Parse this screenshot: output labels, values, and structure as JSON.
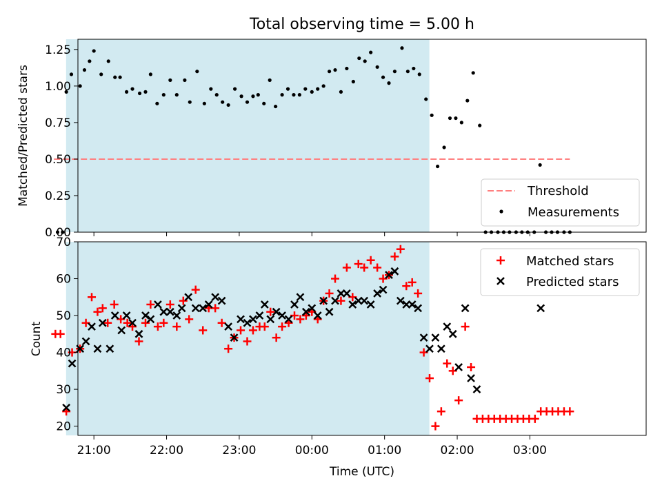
{
  "chart_data": [
    {
      "type": "scatter",
      "title": "Total observing time = 5.00 h",
      "xlabel": "",
      "ylabel": "Matched/Predicted stars",
      "xlim": [
        -3.22,
        4.6
      ],
      "ylim": [
        0.0,
        1.32
      ],
      "yticks": [
        "0.00",
        "0.25",
        "0.50",
        "0.75",
        "1.00",
        "1.25"
      ],
      "shaded_interval": {
        "start": -3.383,
        "end": 1.617,
        "color": "#add8e6"
      },
      "threshold": {
        "name": "Threshold",
        "y": 0.5,
        "x_start": -3.55,
        "x_end": 3.55,
        "color": "#ff7f7f",
        "style": "dashed"
      },
      "series": [
        {
          "name": "Measurements",
          "color": "#000000",
          "marker": "dot",
          "points": [
            [
              -3.5,
              0.0
            ],
            [
              -3.43,
              0.0
            ],
            [
              -3.38,
              0.96
            ],
            [
              -3.31,
              1.08
            ],
            [
              -3.19,
              1.0
            ],
            [
              -3.13,
              1.11
            ],
            [
              -3.06,
              1.17
            ],
            [
              -3.0,
              1.24
            ],
            [
              -2.9,
              1.08
            ],
            [
              -2.8,
              1.17
            ],
            [
              -2.71,
              1.06
            ],
            [
              -2.64,
              1.06
            ],
            [
              -2.55,
              0.96
            ],
            [
              -2.47,
              0.98
            ],
            [
              -2.37,
              0.95
            ],
            [
              -2.29,
              0.96
            ],
            [
              -2.22,
              1.08
            ],
            [
              -2.13,
              0.88
            ],
            [
              -2.04,
              0.94
            ],
            [
              -1.95,
              1.04
            ],
            [
              -1.86,
              0.94
            ],
            [
              -1.75,
              1.04
            ],
            [
              -1.68,
              0.89
            ],
            [
              -1.58,
              1.1
            ],
            [
              -1.48,
              0.88
            ],
            [
              -1.39,
              0.98
            ],
            [
              -1.31,
              0.94
            ],
            [
              -1.23,
              0.89
            ],
            [
              -1.15,
              0.87
            ],
            [
              -1.06,
              0.98
            ],
            [
              -0.97,
              0.93
            ],
            [
              -0.89,
              0.89
            ],
            [
              -0.81,
              0.93
            ],
            [
              -0.74,
              0.94
            ],
            [
              -0.66,
              0.88
            ],
            [
              -0.58,
              1.04
            ],
            [
              -0.5,
              0.86
            ],
            [
              -0.41,
              0.94
            ],
            [
              -0.33,
              0.98
            ],
            [
              -0.25,
              0.94
            ],
            [
              -0.17,
              0.94
            ],
            [
              -0.09,
              0.98
            ],
            [
              0.0,
              0.96
            ],
            [
              0.08,
              0.98
            ],
            [
              0.16,
              1.0
            ],
            [
              0.24,
              1.1
            ],
            [
              0.32,
              1.11
            ],
            [
              0.4,
              0.96
            ],
            [
              0.48,
              1.12
            ],
            [
              0.57,
              1.03
            ],
            [
              0.65,
              1.19
            ],
            [
              0.73,
              1.17
            ],
            [
              0.81,
              1.23
            ],
            [
              0.9,
              1.13
            ],
            [
              0.98,
              1.06
            ],
            [
              1.06,
              1.02
            ],
            [
              1.14,
              1.1
            ],
            [
              1.24,
              1.26
            ],
            [
              1.32,
              1.1
            ],
            [
              1.4,
              1.12
            ],
            [
              1.48,
              1.08
            ],
            [
              1.57,
              0.91
            ],
            [
              1.65,
              0.8
            ],
            [
              1.73,
              0.45
            ],
            [
              1.82,
              0.58
            ],
            [
              1.9,
              0.78
            ],
            [
              1.98,
              0.78
            ],
            [
              2.06,
              0.75
            ],
            [
              2.14,
              0.9
            ],
            [
              2.22,
              1.09
            ],
            [
              2.31,
              0.73
            ],
            [
              2.39,
              0.0
            ],
            [
              2.47,
              0.0
            ],
            [
              2.56,
              0.0
            ],
            [
              2.64,
              0.0
            ],
            [
              2.72,
              0.0
            ],
            [
              2.81,
              0.0
            ],
            [
              2.89,
              0.0
            ],
            [
              2.97,
              0.0
            ],
            [
              3.06,
              0.0
            ],
            [
              3.14,
              0.46
            ],
            [
              3.22,
              0.0
            ],
            [
              3.3,
              0.0
            ],
            [
              3.38,
              0.0
            ],
            [
              3.47,
              0.0
            ],
            [
              3.55,
              0.0
            ]
          ]
        }
      ],
      "legend": {
        "placement": "lower-right",
        "entries": [
          "Threshold",
          "Measurements"
        ]
      }
    },
    {
      "type": "scatter",
      "title": "",
      "xlabel": "Time (UTC)",
      "ylabel": "Count",
      "xlim": [
        -3.22,
        4.6
      ],
      "ylim": [
        17.5,
        70.0
      ],
      "yticks": [
        "20",
        "30",
        "40",
        "50",
        "60",
        "70"
      ],
      "xticks": [
        {
          "value": -3.0,
          "label": "21:00"
        },
        {
          "value": -2.0,
          "label": "22:00"
        },
        {
          "value": -1.0,
          "label": "23:00"
        },
        {
          "value": 0.0,
          "label": "00:00"
        },
        {
          "value": 1.0,
          "label": "01:00"
        },
        {
          "value": 2.0,
          "label": "02:00"
        },
        {
          "value": 3.0,
          "label": "03:00"
        }
      ],
      "shaded_interval": {
        "start": -3.383,
        "end": 1.617,
        "color": "#add8e6"
      },
      "series": [
        {
          "name": "Matched stars",
          "color": "#ff0000",
          "marker": "plus",
          "points": [
            [
              -3.53,
              45
            ],
            [
              -3.46,
              45
            ],
            [
              -3.38,
              24
            ],
            [
              -3.3,
              40
            ],
            [
              -3.19,
              41
            ],
            [
              -3.11,
              48
            ],
            [
              -3.03,
              55
            ],
            [
              -2.95,
              51
            ],
            [
              -2.88,
              52
            ],
            [
              -2.81,
              48
            ],
            [
              -2.72,
              53
            ],
            [
              -2.63,
              49
            ],
            [
              -2.54,
              48
            ],
            [
              -2.47,
              47
            ],
            [
              -2.38,
              43
            ],
            [
              -2.29,
              48
            ],
            [
              -2.22,
              53
            ],
            [
              -2.12,
              47
            ],
            [
              -2.04,
              48
            ],
            [
              -1.95,
              53
            ],
            [
              -1.86,
              47
            ],
            [
              -1.77,
              54
            ],
            [
              -1.69,
              49
            ],
            [
              -1.6,
              57
            ],
            [
              -1.5,
              46
            ],
            [
              -1.42,
              52
            ],
            [
              -1.33,
              52
            ],
            [
              -1.24,
              48
            ],
            [
              -1.15,
              41
            ],
            [
              -1.07,
              44
            ],
            [
              -0.98,
              46
            ],
            [
              -0.89,
              43
            ],
            [
              -0.81,
              46
            ],
            [
              -0.72,
              47
            ],
            [
              -0.65,
              47
            ],
            [
              -0.57,
              51
            ],
            [
              -0.49,
              44
            ],
            [
              -0.41,
              47
            ],
            [
              -0.32,
              48
            ],
            [
              -0.24,
              50
            ],
            [
              -0.16,
              49
            ],
            [
              -0.08,
              50
            ],
            [
              0.0,
              51
            ],
            [
              0.08,
              49
            ],
            [
              0.16,
              54
            ],
            [
              0.24,
              56
            ],
            [
              0.32,
              60
            ],
            [
              0.4,
              54
            ],
            [
              0.48,
              63
            ],
            [
              0.56,
              55
            ],
            [
              0.64,
              64
            ],
            [
              0.72,
              63
            ],
            [
              0.81,
              65
            ],
            [
              0.9,
              63
            ],
            [
              0.98,
              60
            ],
            [
              1.06,
              61
            ],
            [
              1.14,
              66
            ],
            [
              1.22,
              68
            ],
            [
              1.3,
              58
            ],
            [
              1.38,
              59
            ],
            [
              1.46,
              56
            ],
            [
              1.54,
              40
            ],
            [
              1.62,
              33
            ],
            [
              1.7,
              20
            ],
            [
              1.78,
              24
            ],
            [
              1.86,
              37
            ],
            [
              1.94,
              35
            ],
            [
              2.02,
              27
            ],
            [
              2.11,
              47
            ],
            [
              2.19,
              36
            ],
            [
              2.27,
              22
            ],
            [
              2.35,
              22
            ],
            [
              2.43,
              22
            ],
            [
              2.51,
              22
            ],
            [
              2.59,
              22
            ],
            [
              2.67,
              22
            ],
            [
              2.75,
              22
            ],
            [
              2.83,
              22
            ],
            [
              2.91,
              22
            ],
            [
              2.99,
              22
            ],
            [
              3.07,
              22
            ],
            [
              3.15,
              24
            ],
            [
              3.23,
              24
            ],
            [
              3.31,
              24
            ],
            [
              3.39,
              24
            ],
            [
              3.47,
              24
            ],
            [
              3.55,
              24
            ]
          ]
        },
        {
          "name": "Predicted stars",
          "color": "#000000",
          "marker": "x",
          "points": [
            [
              -3.38,
              25
            ],
            [
              -3.3,
              37
            ],
            [
              -3.19,
              41
            ],
            [
              -3.11,
              43
            ],
            [
              -3.03,
              47
            ],
            [
              -2.95,
              41
            ],
            [
              -2.88,
              48
            ],
            [
              -2.78,
              41
            ],
            [
              -2.71,
              50
            ],
            [
              -2.62,
              46
            ],
            [
              -2.55,
              50
            ],
            [
              -2.47,
              48
            ],
            [
              -2.38,
              45
            ],
            [
              -2.29,
              50
            ],
            [
              -2.22,
              49
            ],
            [
              -2.12,
              53
            ],
            [
              -2.04,
              51
            ],
            [
              -1.95,
              51
            ],
            [
              -1.86,
              50
            ],
            [
              -1.79,
              52
            ],
            [
              -1.7,
              55
            ],
            [
              -1.6,
              52
            ],
            [
              -1.5,
              52
            ],
            [
              -1.42,
              53
            ],
            [
              -1.33,
              55
            ],
            [
              -1.24,
              54
            ],
            [
              -1.15,
              47
            ],
            [
              -1.07,
              44
            ],
            [
              -0.98,
              49
            ],
            [
              -0.89,
              48
            ],
            [
              -0.81,
              49
            ],
            [
              -0.72,
              50
            ],
            [
              -0.65,
              53
            ],
            [
              -0.57,
              49
            ],
            [
              -0.49,
              51
            ],
            [
              -0.41,
              50
            ],
            [
              -0.32,
              49
            ],
            [
              -0.24,
              53
            ],
            [
              -0.16,
              55
            ],
            [
              -0.08,
              51
            ],
            [
              0.0,
              52
            ],
            [
              0.08,
              50
            ],
            [
              0.16,
              54
            ],
            [
              0.24,
              51
            ],
            [
              0.32,
              54
            ],
            [
              0.4,
              56
            ],
            [
              0.48,
              56
            ],
            [
              0.56,
              53
            ],
            [
              0.64,
              54
            ],
            [
              0.72,
              54
            ],
            [
              0.81,
              53
            ],
            [
              0.9,
              56
            ],
            [
              0.98,
              57
            ],
            [
              1.06,
              61
            ],
            [
              1.14,
              62
            ],
            [
              1.22,
              54
            ],
            [
              1.3,
              53
            ],
            [
              1.38,
              53
            ],
            [
              1.46,
              52
            ],
            [
              1.54,
              44
            ],
            [
              1.62,
              41
            ],
            [
              1.7,
              44
            ],
            [
              1.78,
              41
            ],
            [
              1.86,
              47
            ],
            [
              1.94,
              45
            ],
            [
              2.02,
              36
            ],
            [
              2.11,
              52
            ],
            [
              2.19,
              33
            ],
            [
              2.27,
              30
            ],
            [
              3.15,
              52
            ]
          ]
        }
      ],
      "legend": {
        "placement": "upper-right",
        "entries": [
          "Matched stars",
          "Predicted stars"
        ]
      }
    }
  ]
}
